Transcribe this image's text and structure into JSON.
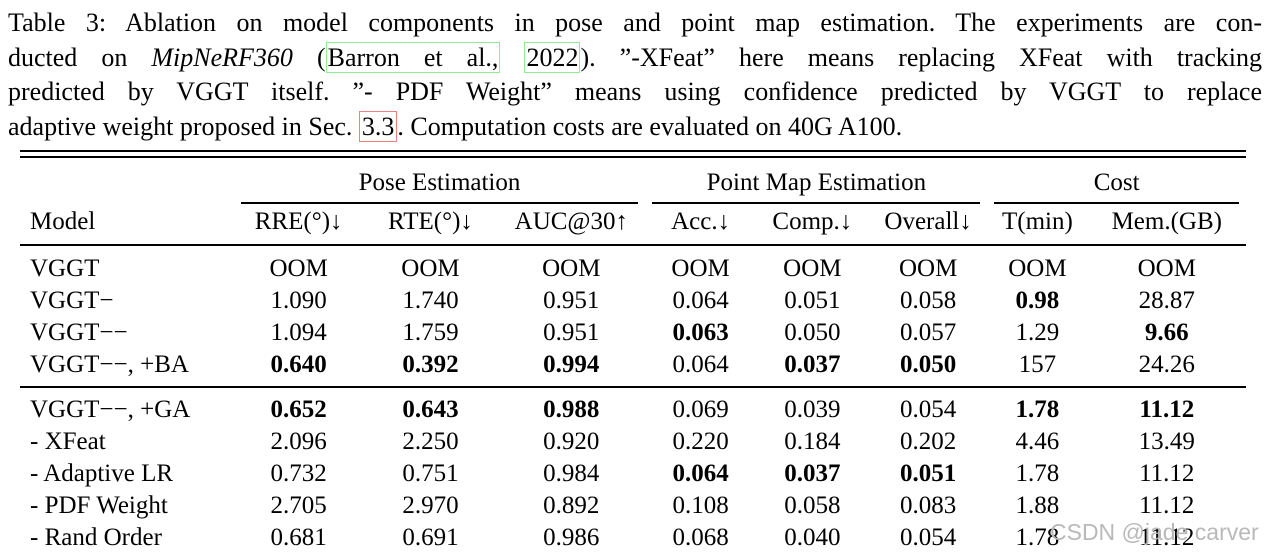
{
  "caption": {
    "lines": {
      "l1": "Table 3: Ablation on model components in pose and point map estimation. The experiments are con-",
      "l2_pre": "ducted on ",
      "l2_italic": "MipNeRF360",
      "l2_mid": " (",
      "l2_cite1": "Barron et al.,",
      "l2_gap": " ",
      "l2_cite2": "2022",
      "l2_post": "). ”-XFeat” here means replacing XFeat with tracking",
      "l3": "predicted by VGGT itself. ”- PDF Weight” means using confidence predicted by VGGT to replace",
      "l4_pre": "adaptive weight proposed in Sec. ",
      "l4_ref": "3.3",
      "l4_post": ". Computation costs are evaluated on 40G A100."
    }
  },
  "table": {
    "group_headers": [
      {
        "label": "Pose Estimation",
        "span": 3
      },
      {
        "label": "Point Map Estimation",
        "span": 3
      },
      {
        "label": "Cost",
        "span": 2
      }
    ],
    "columns": [
      "Model",
      "RRE(°)↓",
      "RTE(°)↓",
      "AUC@30↑",
      "Acc.↓",
      "Comp.↓",
      "Overall↓",
      "T(min)",
      "Mem.(GB)"
    ],
    "blocks": [
      {
        "rows": [
          {
            "model": "VGGT",
            "values": [
              "OOM",
              "OOM",
              "OOM",
              "OOM",
              "OOM",
              "OOM",
              "OOM",
              "OOM"
            ],
            "bold": []
          },
          {
            "model": "VGGT−",
            "values": [
              "1.090",
              "1.740",
              "0.951",
              "0.064",
              "0.051",
              "0.058",
              "0.98",
              "28.87"
            ],
            "bold": [
              6
            ]
          },
          {
            "model": "VGGT−−",
            "values": [
              "1.094",
              "1.759",
              "0.951",
              "0.063",
              "0.050",
              "0.057",
              "1.29",
              "9.66"
            ],
            "bold": [
              3,
              7
            ]
          },
          {
            "model": "VGGT−−, +BA",
            "values": [
              "0.640",
              "0.392",
              "0.994",
              "0.064",
              "0.037",
              "0.050",
              "157",
              "24.26"
            ],
            "bold": [
              0,
              1,
              2,
              4,
              5
            ]
          }
        ]
      },
      {
        "rows": [
          {
            "model": "VGGT−−, +GA",
            "values": [
              "0.652",
              "0.643",
              "0.988",
              "0.069",
              "0.039",
              "0.054",
              "1.78",
              "11.12"
            ],
            "bold": [
              0,
              1,
              2,
              6,
              7
            ]
          },
          {
            "model": "- XFeat",
            "values": [
              "2.096",
              "2.250",
              "0.920",
              "0.220",
              "0.184",
              "0.202",
              "4.46",
              "13.49"
            ],
            "bold": []
          },
          {
            "model": "- Adaptive LR",
            "values": [
              "0.732",
              "0.751",
              "0.984",
              "0.064",
              "0.037",
              "0.051",
              "1.78",
              "11.12"
            ],
            "bold": [
              3,
              4,
              5
            ]
          },
          {
            "model": "- PDF Weight",
            "values": [
              "2.705",
              "2.970",
              "0.892",
              "0.108",
              "0.058",
              "0.083",
              "1.88",
              "11.12"
            ],
            "bold": []
          },
          {
            "model": "- Rand Order",
            "values": [
              "0.681",
              "0.691",
              "0.986",
              "0.068",
              "0.040",
              "0.054",
              "1.78",
              "11.12"
            ],
            "bold": []
          }
        ]
      }
    ]
  },
  "watermark": {
    "text": "CSDN @jade carver"
  },
  "colors": {
    "citation_box_green": "#90ee90",
    "section_box_red": "#f08080",
    "watermark_gray": "#b9b9b9",
    "text": "#000000",
    "background": "#ffffff"
  }
}
